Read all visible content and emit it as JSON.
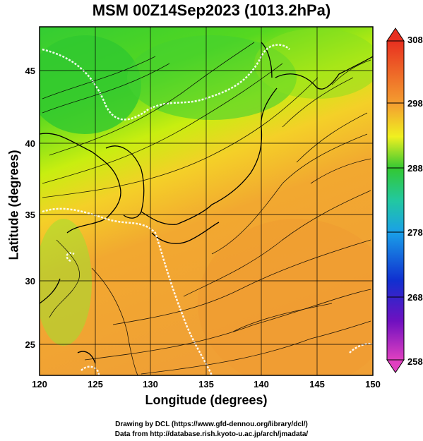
{
  "title": "MSM 00Z14Sep2023 (1013.2hPa)",
  "x_axis": {
    "label": "Longitude (degrees)",
    "ticks": [
      120,
      125,
      130,
      135,
      140,
      145,
      150
    ],
    "range": [
      120,
      150
    ]
  },
  "y_axis": {
    "label": "Latitude  (degrees)",
    "ticks": [
      25,
      30,
      35,
      40,
      45
    ],
    "range": [
      22.4,
      47.6
    ]
  },
  "colorbar": {
    "ticks": [
      "308",
      "298",
      "288",
      "278",
      "268",
      "258"
    ],
    "min": 258,
    "max": 308
  },
  "credits": {
    "line1": "Drawing by DCL (https://www.gfd-dennou.org/library/dcl/)",
    "line2": "Data from http://database.rish.kyoto-u.ac.jp/arch/jmadata/"
  }
}
